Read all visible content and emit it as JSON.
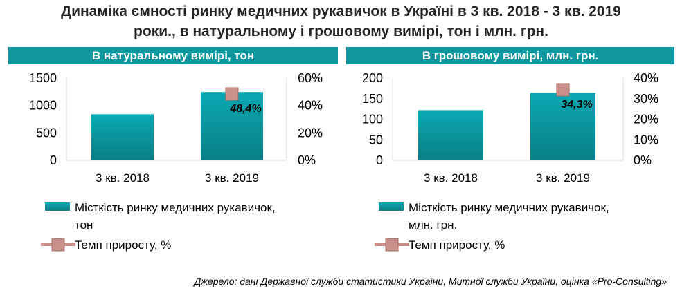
{
  "title_line1": "Динаміка ємності ринку медичних рукавичок в Україні в 3 кв. 2018 - 3 кв. 2019",
  "title_line2": "роки., в натуральному і грошовому вимірі, тон і млн. грн.",
  "source": "Джерело: дані Державної служби статистики України, Митної служби України, оцінка «Pro-Consulting»",
  "colors": {
    "header": "#0f97a0",
    "bar_top": "#0aa9b3",
    "bar_bottom": "#0a7f86",
    "marker": "#c9908b",
    "marker_border": "#a86b66"
  },
  "chart_data": [
    {
      "type": "bar",
      "header": "В натуральному вимірі, тон",
      "categories": [
        "3 кв. 2018",
        "3 кв. 2019"
      ],
      "series": [
        {
          "name": "Місткість ринку медичних рукавичок, тон",
          "type": "bar",
          "axis": "left",
          "values": [
            840,
            1245
          ]
        },
        {
          "name": "Темп приросту, %",
          "type": "marker",
          "axis": "right",
          "values": [
            null,
            48.4
          ]
        }
      ],
      "data_labels": [
        "",
        "48,4%"
      ],
      "left_ticks": [
        "0",
        "500",
        "1000",
        "1500"
      ],
      "ylim": [
        0,
        1500
      ],
      "right_ticks": [
        "0%",
        "20%",
        "40%",
        "60%"
      ],
      "ylim_right": [
        0,
        60
      ],
      "legend": [
        "Місткість ринку медичних рукавичок,",
        "тон",
        "Темп приросту, %"
      ]
    },
    {
      "type": "bar",
      "header": "В грошовому вимірі, млн. грн.",
      "categories": [
        "3 кв. 2018",
        "3 кв. 2019"
      ],
      "series": [
        {
          "name": "Місткість ринку медичних рукавичок, млн. грн.",
          "type": "bar",
          "axis": "left",
          "values": [
            122,
            164
          ]
        },
        {
          "name": "Темп приросту, %",
          "type": "marker",
          "axis": "right",
          "values": [
            null,
            34.3
          ]
        }
      ],
      "data_labels": [
        "",
        "34,3%"
      ],
      "left_ticks": [
        "0",
        "50",
        "100",
        "150",
        "200"
      ],
      "ylim": [
        0,
        200
      ],
      "right_ticks": [
        "0%",
        "10%",
        "20%",
        "30%",
        "40%"
      ],
      "ylim_right": [
        0,
        40
      ],
      "legend": [
        "Місткість ринку медичних рукавичок,",
        "млн. грн.",
        "Темп приросту, %"
      ]
    }
  ]
}
